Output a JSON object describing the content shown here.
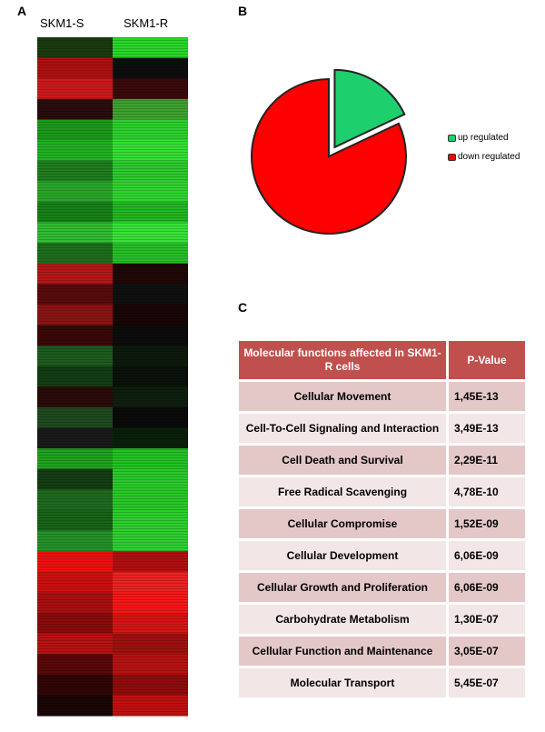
{
  "panels": {
    "a": "A",
    "b": "B",
    "c": "C"
  },
  "heatmap": {
    "columns": [
      "SKM1-S",
      "SKM1-R"
    ],
    "segments": [
      {
        "s": "#1a3a10",
        "r": "#26d826"
      },
      {
        "s": "#b01010",
        "r": "#0e0e0e"
      },
      {
        "s": "#cc1a1a",
        "r": "#3a0a0a"
      },
      {
        "s": "#2a0d0d",
        "r": "#40a030"
      },
      {
        "s": "#1a9a1a",
        "r": "#2ed02e"
      },
      {
        "s": "#22b022",
        "r": "#33e033"
      },
      {
        "s": "#1e7e1e",
        "r": "#2bcb2b"
      },
      {
        "s": "#2aa62a",
        "r": "#30d430"
      },
      {
        "s": "#178017",
        "r": "#23b523"
      },
      {
        "s": "#33bb33",
        "r": "#3ae03a"
      },
      {
        "s": "#1c6f1c",
        "r": "#27bf27"
      },
      {
        "s": "#b41818",
        "r": "#200808"
      },
      {
        "s": "#5a0c0c",
        "r": "#101010"
      },
      {
        "s": "#8a1414",
        "r": "#1a0606"
      },
      {
        "s": "#3a0808",
        "r": "#0c0c0c"
      },
      {
        "s": "#1e5c1e",
        "r": "#0c1a0c"
      },
      {
        "s": "#123d12",
        "r": "#0a120a"
      },
      {
        "s": "#2a0a0a",
        "r": "#0e1e0e"
      },
      {
        "s": "#1f4a1f",
        "r": "#0a0a0a"
      },
      {
        "s": "#1a1a1a",
        "r": "#0a200a"
      },
      {
        "s": "#22a022",
        "r": "#25c025"
      },
      {
        "s": "#143e14",
        "r": "#2cc82c"
      },
      {
        "s": "#1f6a1f",
        "r": "#28c828"
      },
      {
        "s": "#176317",
        "r": "#2ad02a"
      },
      {
        "s": "#25902a",
        "r": "#2fcf2f"
      },
      {
        "s": "#ee1111",
        "r": "#b01010"
      },
      {
        "s": "#cc1010",
        "r": "#ee2222"
      },
      {
        "s": "#a81010",
        "r": "#f51818"
      },
      {
        "s": "#8a0c0c",
        "r": "#d81414"
      },
      {
        "s": "#b81212",
        "r": "#a01010"
      },
      {
        "s": "#5a0808",
        "r": "#b81212"
      },
      {
        "s": "#300606",
        "r": "#8e0c0c"
      },
      {
        "s": "#1a0606",
        "r": "#c01010"
      }
    ]
  },
  "chart_data": {
    "type": "pie",
    "labels": [
      "up regulated",
      "down regulated"
    ],
    "values": [
      18,
      82
    ],
    "colors": [
      "#1ecf6e",
      "#ff0000"
    ],
    "exploded": "up regulated",
    "legend_position": "right"
  },
  "legend": [
    {
      "label": "up regulated",
      "color": "#1ecf6e"
    },
    {
      "label": "down regulated",
      "color": "#ff0000"
    }
  ],
  "table": {
    "header_function": "Molecular functions affected in SKM1-R cells",
    "header_pvalue": "P-Value",
    "rows": [
      {
        "function": "Cellular Movement",
        "pvalue": "1,45E-13"
      },
      {
        "function": "Cell-To-Cell Signaling and Interaction",
        "pvalue": "3,49E-13"
      },
      {
        "function": "Cell Death and Survival",
        "pvalue": "2,29E-11"
      },
      {
        "function": "Free Radical Scavenging",
        "pvalue": "4,78E-10"
      },
      {
        "function": "Cellular Compromise",
        "pvalue": "1,52E-09"
      },
      {
        "function": "Cellular Development",
        "pvalue": "6,06E-09"
      },
      {
        "function": "Cellular Growth and Proliferation",
        "pvalue": "6,06E-09"
      },
      {
        "function": "Carbohydrate Metabolism",
        "pvalue": "1,30E-07"
      },
      {
        "function": "Cellular Function and Maintenance",
        "pvalue": "3,05E-07"
      },
      {
        "function": "Molecular Transport",
        "pvalue": "5,45E-07"
      }
    ]
  }
}
